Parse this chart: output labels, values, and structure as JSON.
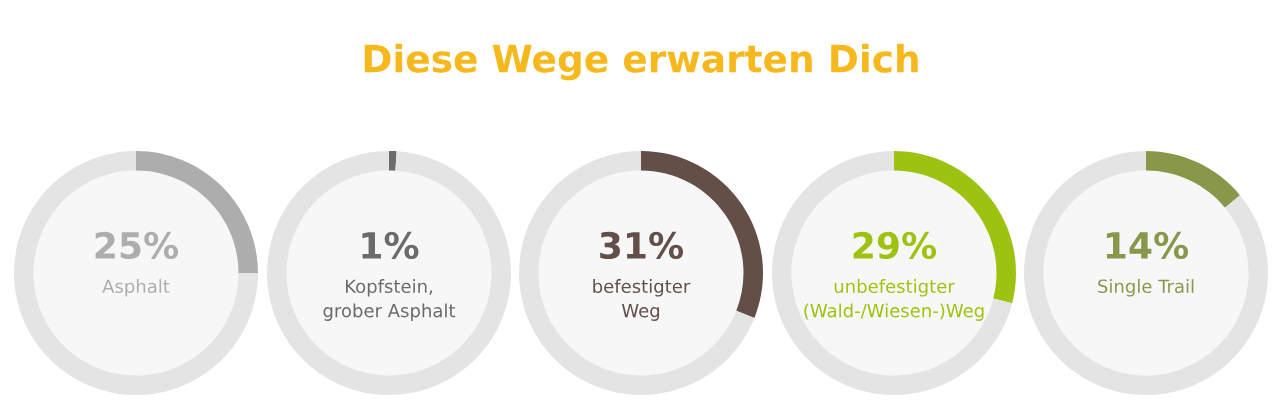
{
  "chart_data": [
    {
      "type": "donut",
      "categories": [
        null,
        null
      ],
      "values": [
        25,
        75
      ],
      "colors": [
        "#adadae",
        "#e4e4e4"
      ],
      "value_labels": [
        "25%",
        null
      ],
      "annotations": [
        "Asphalt"
      ]
    },
    {
      "type": "donut",
      "categories": [
        null,
        null
      ],
      "values": [
        1,
        99
      ],
      "colors": [
        "#6b6b6b",
        "#e4e4e4"
      ],
      "value_labels": [
        "1%",
        null
      ],
      "annotations": [
        "Kopfstein,\ngrober Asphalt"
      ]
    },
    {
      "type": "donut",
      "title": "Diese Wege erwarten Dich",
      "categories": [
        null,
        null
      ],
      "values": [
        31,
        69
      ],
      "colors": [
        "#634f48",
        "#e4e4e4"
      ],
      "value_labels": [
        "31%",
        null
      ],
      "annotations": [
        "befestigter\nWeg"
      ]
    },
    {
      "type": "donut",
      "categories": [
        null,
        null
      ],
      "values": [
        29,
        71
      ],
      "colors": [
        "#9dc20f",
        "#e4e4e4"
      ],
      "value_labels": [
        "29%",
        null
      ],
      "annotations": [
        "unbefestigter\n(Wald-/Wiesen-)Weg"
      ]
    },
    {
      "type": "donut",
      "categories": [
        null,
        null
      ],
      "values": [
        14,
        86
      ],
      "colors": [
        "#87984b",
        "#e4e4e4"
      ],
      "value_labels": [
        "14%",
        null
      ],
      "annotations": [
        "Single Trail"
      ]
    }
  ]
}
